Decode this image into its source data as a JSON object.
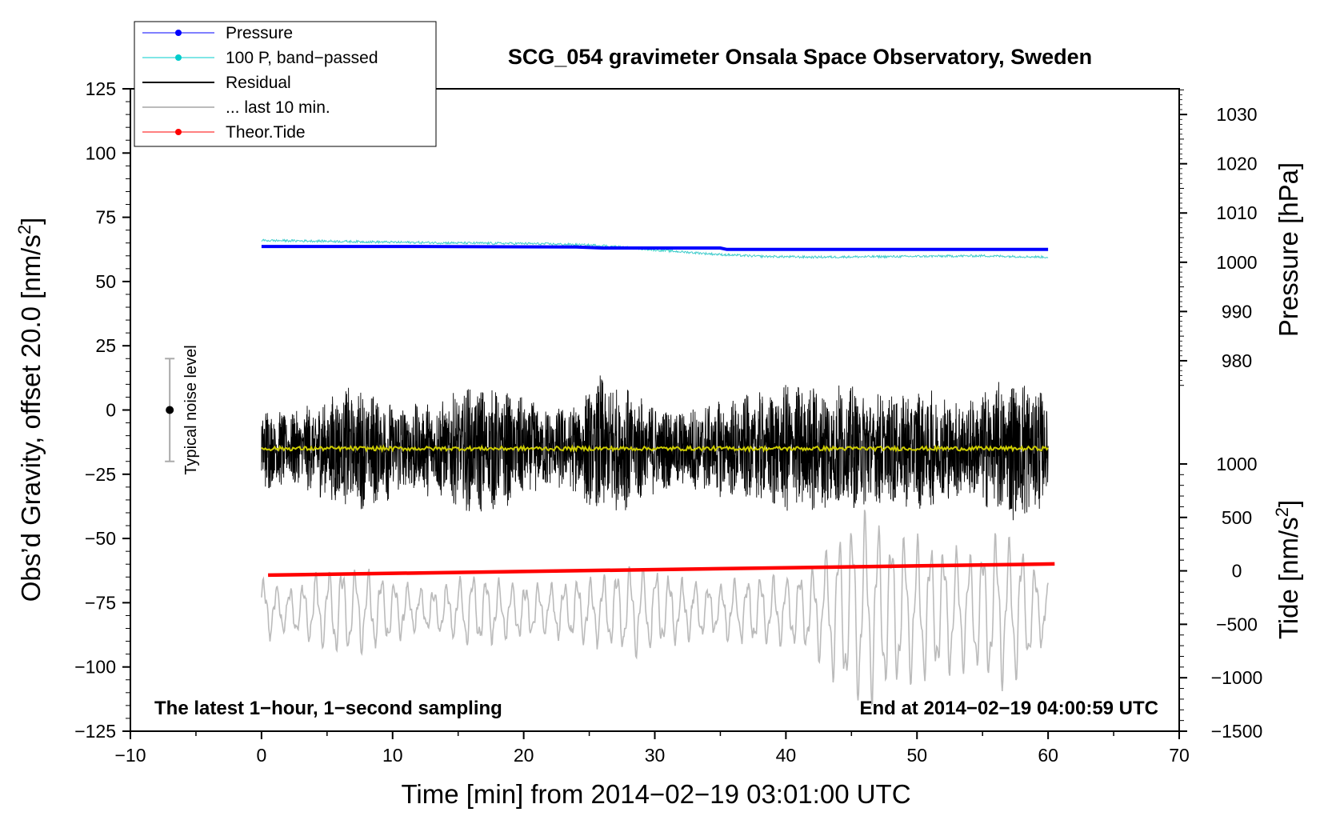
{
  "chart_data": {
    "type": "line",
    "title": "SCG_054 gravimeter Onsala Space Observatory, Sweden",
    "xlabel": "Time [min] from 2014−02−19 03:01:00 UTC",
    "ylabel_main": "Obs’d Gravity, offset 20.0 [nm/s",
    "ylabel_main_sup": "2",
    "ylabel_main_end": "]",
    "ylabel_pressure": "Pressure [hPa]",
    "ylabel_tide": "Tide [nm/s",
    "ylabel_tide_sup": "2",
    "ylabel_tide_end": "]",
    "xlim": [
      -10,
      70
    ],
    "ylim": [
      -125,
      125
    ],
    "x_ticks": [
      {
        "v": -10,
        "label": "−10"
      },
      {
        "v": 0,
        "label": "0"
      },
      {
        "v": 10,
        "label": "10"
      },
      {
        "v": 20,
        "label": "20"
      },
      {
        "v": 30,
        "label": "30"
      },
      {
        "v": 40,
        "label": "40"
      },
      {
        "v": 50,
        "label": "50"
      },
      {
        "v": 60,
        "label": "60"
      },
      {
        "v": 70,
        "label": "70"
      }
    ],
    "y_ticks": [
      {
        "v": 125,
        "label": "125"
      },
      {
        "v": 100,
        "label": "100"
      },
      {
        "v": 75,
        "label": "75"
      },
      {
        "v": 50,
        "label": "50"
      },
      {
        "v": 25,
        "label": "25"
      },
      {
        "v": 0,
        "label": "0"
      },
      {
        "v": -25,
        "label": "−25"
      },
      {
        "v": -50,
        "label": "−50"
      },
      {
        "v": -75,
        "label": "−75"
      },
      {
        "v": -100,
        "label": "−100"
      },
      {
        "v": -125,
        "label": "−125"
      }
    ],
    "pressure_axis": {
      "mapping": [
        [
          1000,
          57.5
        ],
        [
          1030,
          115
        ]
      ],
      "ticks": [
        {
          "v": 1030,
          "label": "1030"
        },
        {
          "v": 1020,
          "label": "1020"
        },
        {
          "v": 1010,
          "label": "1010"
        },
        {
          "v": 1000,
          "label": "1000"
        },
        {
          "v": 990,
          "label": "990"
        },
        {
          "v": 980,
          "label": "980"
        }
      ]
    },
    "tide_axis": {
      "mapping": [
        [
          -1500,
          -125
        ],
        [
          1000,
          -21
        ]
      ],
      "ticks": [
        {
          "v": 1000,
          "label": "1000"
        },
        {
          "v": 500,
          "label": "500"
        },
        {
          "v": 0,
          "label": "0"
        },
        {
          "v": -500,
          "label": "−500"
        },
        {
          "v": -1000,
          "label": "−1000"
        },
        {
          "v": -1500,
          "label": "−1500"
        }
      ]
    },
    "legend": [
      {
        "label": "Pressure",
        "color": "#0000ff",
        "marker": true,
        "width": 1
      },
      {
        "label": "100 P, band−passed",
        "color": "#00cccc",
        "marker": true,
        "width": 1
      },
      {
        "label": "Residual",
        "color": "#000000",
        "marker": false,
        "width": 2
      },
      {
        "label": "... last 10 min.",
        "color": "#bbbbbb",
        "marker": false,
        "width": 2
      },
      {
        "label": "Theor.Tide",
        "color": "#ff0000",
        "marker": true,
        "width": 1
      }
    ],
    "series": {
      "pressure": {
        "name": "Pressure",
        "color": "#0000ff",
        "x": [
          0,
          12,
          24,
          26,
          35,
          35.5,
          60
        ],
        "y": [
          1003.2,
          1003.2,
          1003.1,
          1002.9,
          1002.9,
          1002.6,
          1002.6
        ]
      },
      "pressure_bandpassed": {
        "name": "100 P, band−passed",
        "color": "#40cccc",
        "x": [
          0,
          5,
          10,
          15,
          20,
          23,
          26,
          30,
          35,
          38,
          42,
          48,
          55,
          60
        ],
        "y": [
          66,
          65.7,
          65.3,
          65,
          64.8,
          64.5,
          64,
          62.3,
          60.5,
          59.8,
          59.5,
          59.7,
          60,
          59.5
        ]
      },
      "residual": {
        "name": "Residual",
        "color": "#000000",
        "center": -15,
        "envelope_x": [
          0,
          2,
          4,
          6,
          8,
          10,
          12,
          14,
          16,
          18,
          20,
          22,
          24,
          26,
          28,
          30,
          32,
          34,
          36,
          38,
          40,
          42,
          44,
          46,
          48,
          50,
          52,
          54,
          56,
          58,
          60
        ],
        "envelope_a": [
          18,
          14,
          18,
          24,
          24,
          20,
          18,
          20,
          26,
          24,
          20,
          16,
          18,
          30,
          24,
          18,
          16,
          18,
          20,
          22,
          26,
          26,
          26,
          24,
          22,
          24,
          22,
          20,
          26,
          30,
          22
        ]
      },
      "residual_smoothed": {
        "name": "Residual (smoothed)",
        "color": "#cccc00",
        "y": -15
      },
      "last10": {
        "name": "... last 10 min.",
        "color": "#bbbbbb",
        "center": -78,
        "envelope_x": [
          0,
          2,
          4,
          6,
          8,
          10,
          12,
          14,
          16,
          18,
          20,
          22,
          24,
          26,
          28,
          30,
          32,
          34,
          36,
          38,
          40,
          42,
          44,
          46,
          48,
          50,
          52,
          54,
          56,
          58,
          60
        ],
        "envelope_a": [
          12,
          8,
          14,
          18,
          16,
          12,
          8,
          10,
          14,
          12,
          10,
          10,
          12,
          14,
          18,
          16,
          12,
          10,
          12,
          14,
          14,
          16,
          30,
          38,
          30,
          28,
          26,
          22,
          30,
          26,
          10
        ]
      },
      "theor_tide": {
        "name": "Theor.Tide",
        "color": "#ff0000",
        "x": [
          0.5,
          60.5
        ],
        "y": [
          -40,
          65
        ]
      }
    },
    "noise_indicator": {
      "label": "Typical noise level",
      "x": -7,
      "center": 0,
      "range": [
        -20,
        20
      ]
    },
    "annotations": {
      "left": "The latest 1−hour, 1−second sampling",
      "right": "End at 2014−02−19 04:00:59 UTC"
    }
  }
}
